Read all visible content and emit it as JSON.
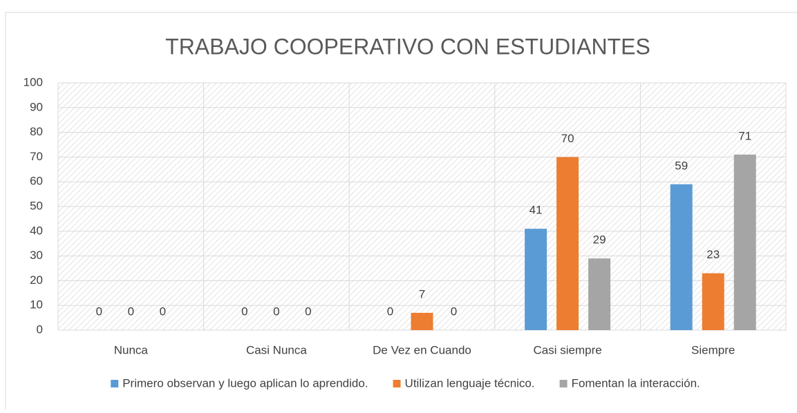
{
  "chart_data": {
    "type": "bar",
    "title": "TRABAJO COOPERATIVO CON ESTUDIANTES",
    "categories": [
      "Nunca",
      "Casi Nunca",
      "De Vez en Cuando",
      "Casi siempre",
      "Siempre"
    ],
    "series": [
      {
        "name": "Primero observan y luego aplican lo aprendido.",
        "color": "#5b9bd5",
        "values": [
          0,
          0,
          0,
          41,
          59
        ]
      },
      {
        "name": "Utilizan lenguaje técnico.",
        "color": "#ed7d31",
        "values": [
          0,
          0,
          7,
          70,
          23
        ]
      },
      {
        "name": "Fomentan la interacción.",
        "color": "#a5a5a5",
        "values": [
          0,
          0,
          0,
          29,
          71
        ]
      }
    ],
    "ylim": [
      0,
      100
    ],
    "yticks": [
      0,
      10,
      20,
      30,
      40,
      50,
      60,
      70,
      80,
      90,
      100
    ],
    "grid": true,
    "legend": "bottom"
  }
}
